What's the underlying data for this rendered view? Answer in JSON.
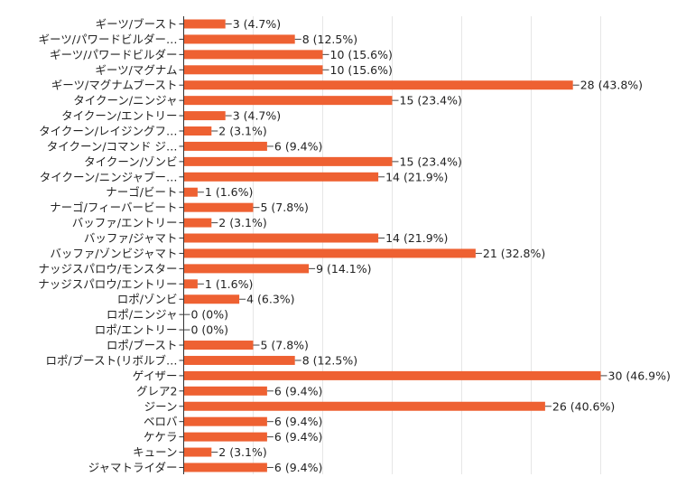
{
  "chart_data": {
    "type": "bar",
    "orientation": "horizontal",
    "bar_color": "#ee6132",
    "grid": true,
    "xlim": [
      0,
      30
    ],
    "categories": [
      "ギーツ/ブースト",
      "ギーツ/パワードビルダー…",
      "ギーツ/パワードビルダー",
      "ギーツ/マグナム",
      "ギーツ/マグナムブースト",
      "タイクーン/ニンジャ",
      "タイクーン/エントリー",
      "タイクーン/レイジングフ…",
      "タイクーン/コマンド ジ…",
      "タイクーン/ゾンビ",
      "タイクーン/ニンジャブー…",
      "ナーゴ/ビート",
      "ナーゴ/フィーバービート",
      "バッファ/エントリー",
      "バッファ/ジャマト",
      "バッファ/ゾンビジャマト",
      "ナッジスパロウ/モンスター",
      "ナッジスパロウ/エントリー",
      "ロポ/ゾンビ",
      "ロポ/ニンジャ",
      "ロポ/エントリー",
      "ロポ/ブースト",
      "ロポ/ブースト(リボルブ…",
      "ゲイザー",
      "グレア2",
      "ジーン",
      "ベロバ",
      "ケケラ",
      "キューン",
      "ジャマトライダー"
    ],
    "values": [
      3,
      8,
      10,
      10,
      28,
      15,
      3,
      2,
      6,
      15,
      14,
      1,
      5,
      2,
      14,
      21,
      9,
      1,
      4,
      0,
      0,
      5,
      8,
      30,
      6,
      26,
      6,
      6,
      2,
      6
    ],
    "data_labels": [
      "3 (4.7%)",
      "8 (12.5%)",
      "10 (15.6%)",
      "10 (15.6%)",
      "28 (43.8%)",
      "15 (23.4%)",
      "3 (4.7%)",
      "2 (3.1%)",
      "6 (9.4%)",
      "15 (23.4%)",
      "14 (21.9%)",
      "1 (1.6%)",
      "5 (7.8%)",
      "2 (3.1%)",
      "14 (21.9%)",
      "21 (32.8%)",
      "9 (14.1%)",
      "1 (1.6%)",
      "4 (6.3%)",
      "0 (0%)",
      "0 (0%)",
      "5 (7.8%)",
      "8 (12.5%)",
      "30 (46.9%)",
      "6 (9.4%)",
      "26 (40.6%)",
      "6 (9.4%)",
      "6 (9.4%)",
      "2 (3.1%)",
      "6 (9.4%)"
    ],
    "title": "",
    "xlabel": "",
    "ylabel": ""
  }
}
